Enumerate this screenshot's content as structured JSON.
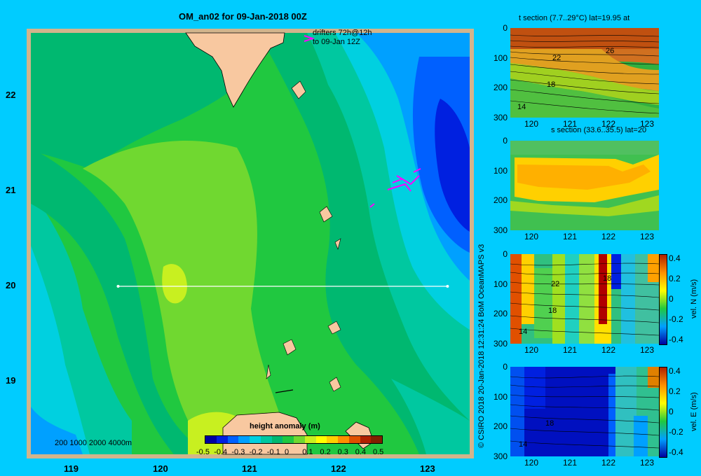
{
  "map": {
    "title": "OM_an02 for 09-Jan-2018 00Z",
    "drifters_line1": "drifters 72h@12h",
    "drifters_line2": "to 09-Jan 12Z",
    "lon_ticks": [
      "119",
      "120",
      "121",
      "122",
      "123"
    ],
    "lat_ticks": [
      "22",
      "21",
      "20",
      "19"
    ],
    "depth_legend": "200  1000  2000  4000m",
    "section_line": {
      "lon_start": 119.5,
      "lon_end": 123.2,
      "lat": 20.0
    },
    "colorbar": {
      "title": "height anomaly  (m)",
      "labels": [
        "-0.5",
        "-0.4",
        "-0.3",
        "-0.2",
        "-0.1",
        "0",
        "0.1",
        "0.2",
        "0.3",
        "0.4",
        "0.5"
      ],
      "colors": [
        "#0000a0",
        "#0020e0",
        "#0060ff",
        "#00a0ff",
        "#00d0e0",
        "#00c8a0",
        "#00b870",
        "#20c840",
        "#70d830",
        "#c8f020",
        "#ffff00",
        "#ffd000",
        "#ff9000",
        "#e05000",
        "#b02000",
        "#802000"
      ]
    }
  },
  "credit": "© CSIRO 2018   20-Jan-2018 12:31:24 BoM OceanMAPS v3",
  "panels": [
    {
      "title": "t section (7.7..29°C) lat=19.95 at",
      "y_ticks": [
        "0",
        "100",
        "200",
        "300"
      ],
      "x_ticks": [
        "120",
        "121",
        "122",
        "123"
      ],
      "contour_labels": [
        "22",
        "26",
        "18",
        "14"
      ],
      "colorbar": null
    },
    {
      "title": "s section (33.6..35.5) lat=20",
      "y_ticks": [
        "0",
        "100",
        "200",
        "300"
      ],
      "x_ticks": [
        "120",
        "121",
        "122",
        "123"
      ],
      "contour_labels": [],
      "colorbar": null
    },
    {
      "title": "",
      "y_ticks": [
        "0",
        "100",
        "200",
        "300"
      ],
      "x_ticks": [
        "120",
        "121",
        "122",
        "123"
      ],
      "contour_labels": [
        "22",
        "18",
        "18",
        "14"
      ],
      "colorbar": {
        "labels": [
          "0.4",
          "0.2",
          "0",
          "-0.2",
          "-0.4"
        ],
        "title": "vel. N (m/s)"
      }
    },
    {
      "title": "",
      "y_ticks": [
        "0",
        "100",
        "200",
        "300"
      ],
      "x_ticks": [
        "120",
        "121",
        "122",
        "123"
      ],
      "contour_labels": [
        "18",
        "14"
      ],
      "colorbar": {
        "labels": [
          "0.4",
          "0.2",
          "0",
          "-0.2",
          "-0.4"
        ],
        "title": "vel. E (m/s)"
      }
    }
  ]
}
